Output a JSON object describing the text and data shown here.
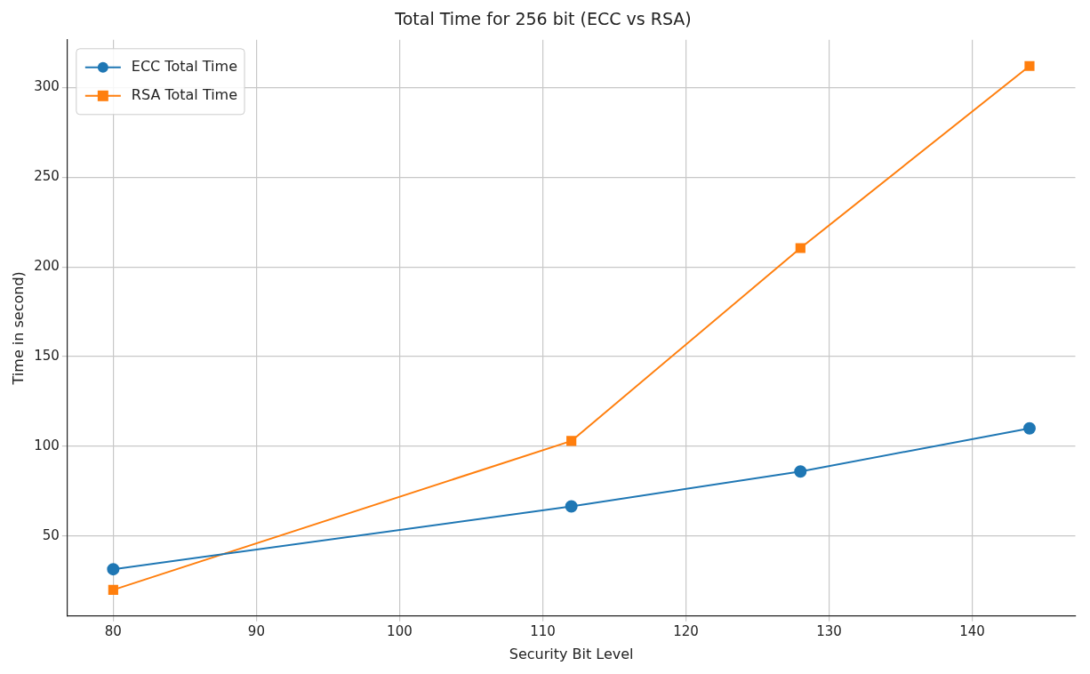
{
  "chart_data": {
    "type": "line",
    "title": "Total Time for 256 bit (ECC vs RSA)",
    "xlabel": "Security Bit Level",
    "ylabel": "Time in second)",
    "x": [
      80,
      112,
      128,
      144
    ],
    "series": [
      {
        "name": "ECC Total Time",
        "color": "#1f77b4",
        "marker": "circle",
        "values": [
          31.5,
          66.5,
          86,
          110
        ]
      },
      {
        "name": "RSA Total Time",
        "color": "#ff7f0e",
        "marker": "square",
        "values": [
          20,
          103,
          210.5,
          312
        ]
      }
    ],
    "xlim": [
      76.8,
      147.2
    ],
    "xticks": [
      80,
      90,
      100,
      110,
      120,
      130,
      140
    ],
    "ylim": [
      5.4,
      326.6
    ],
    "yticks": [
      50,
      100,
      150,
      200,
      250,
      300
    ],
    "grid": true,
    "legend": "top left"
  }
}
